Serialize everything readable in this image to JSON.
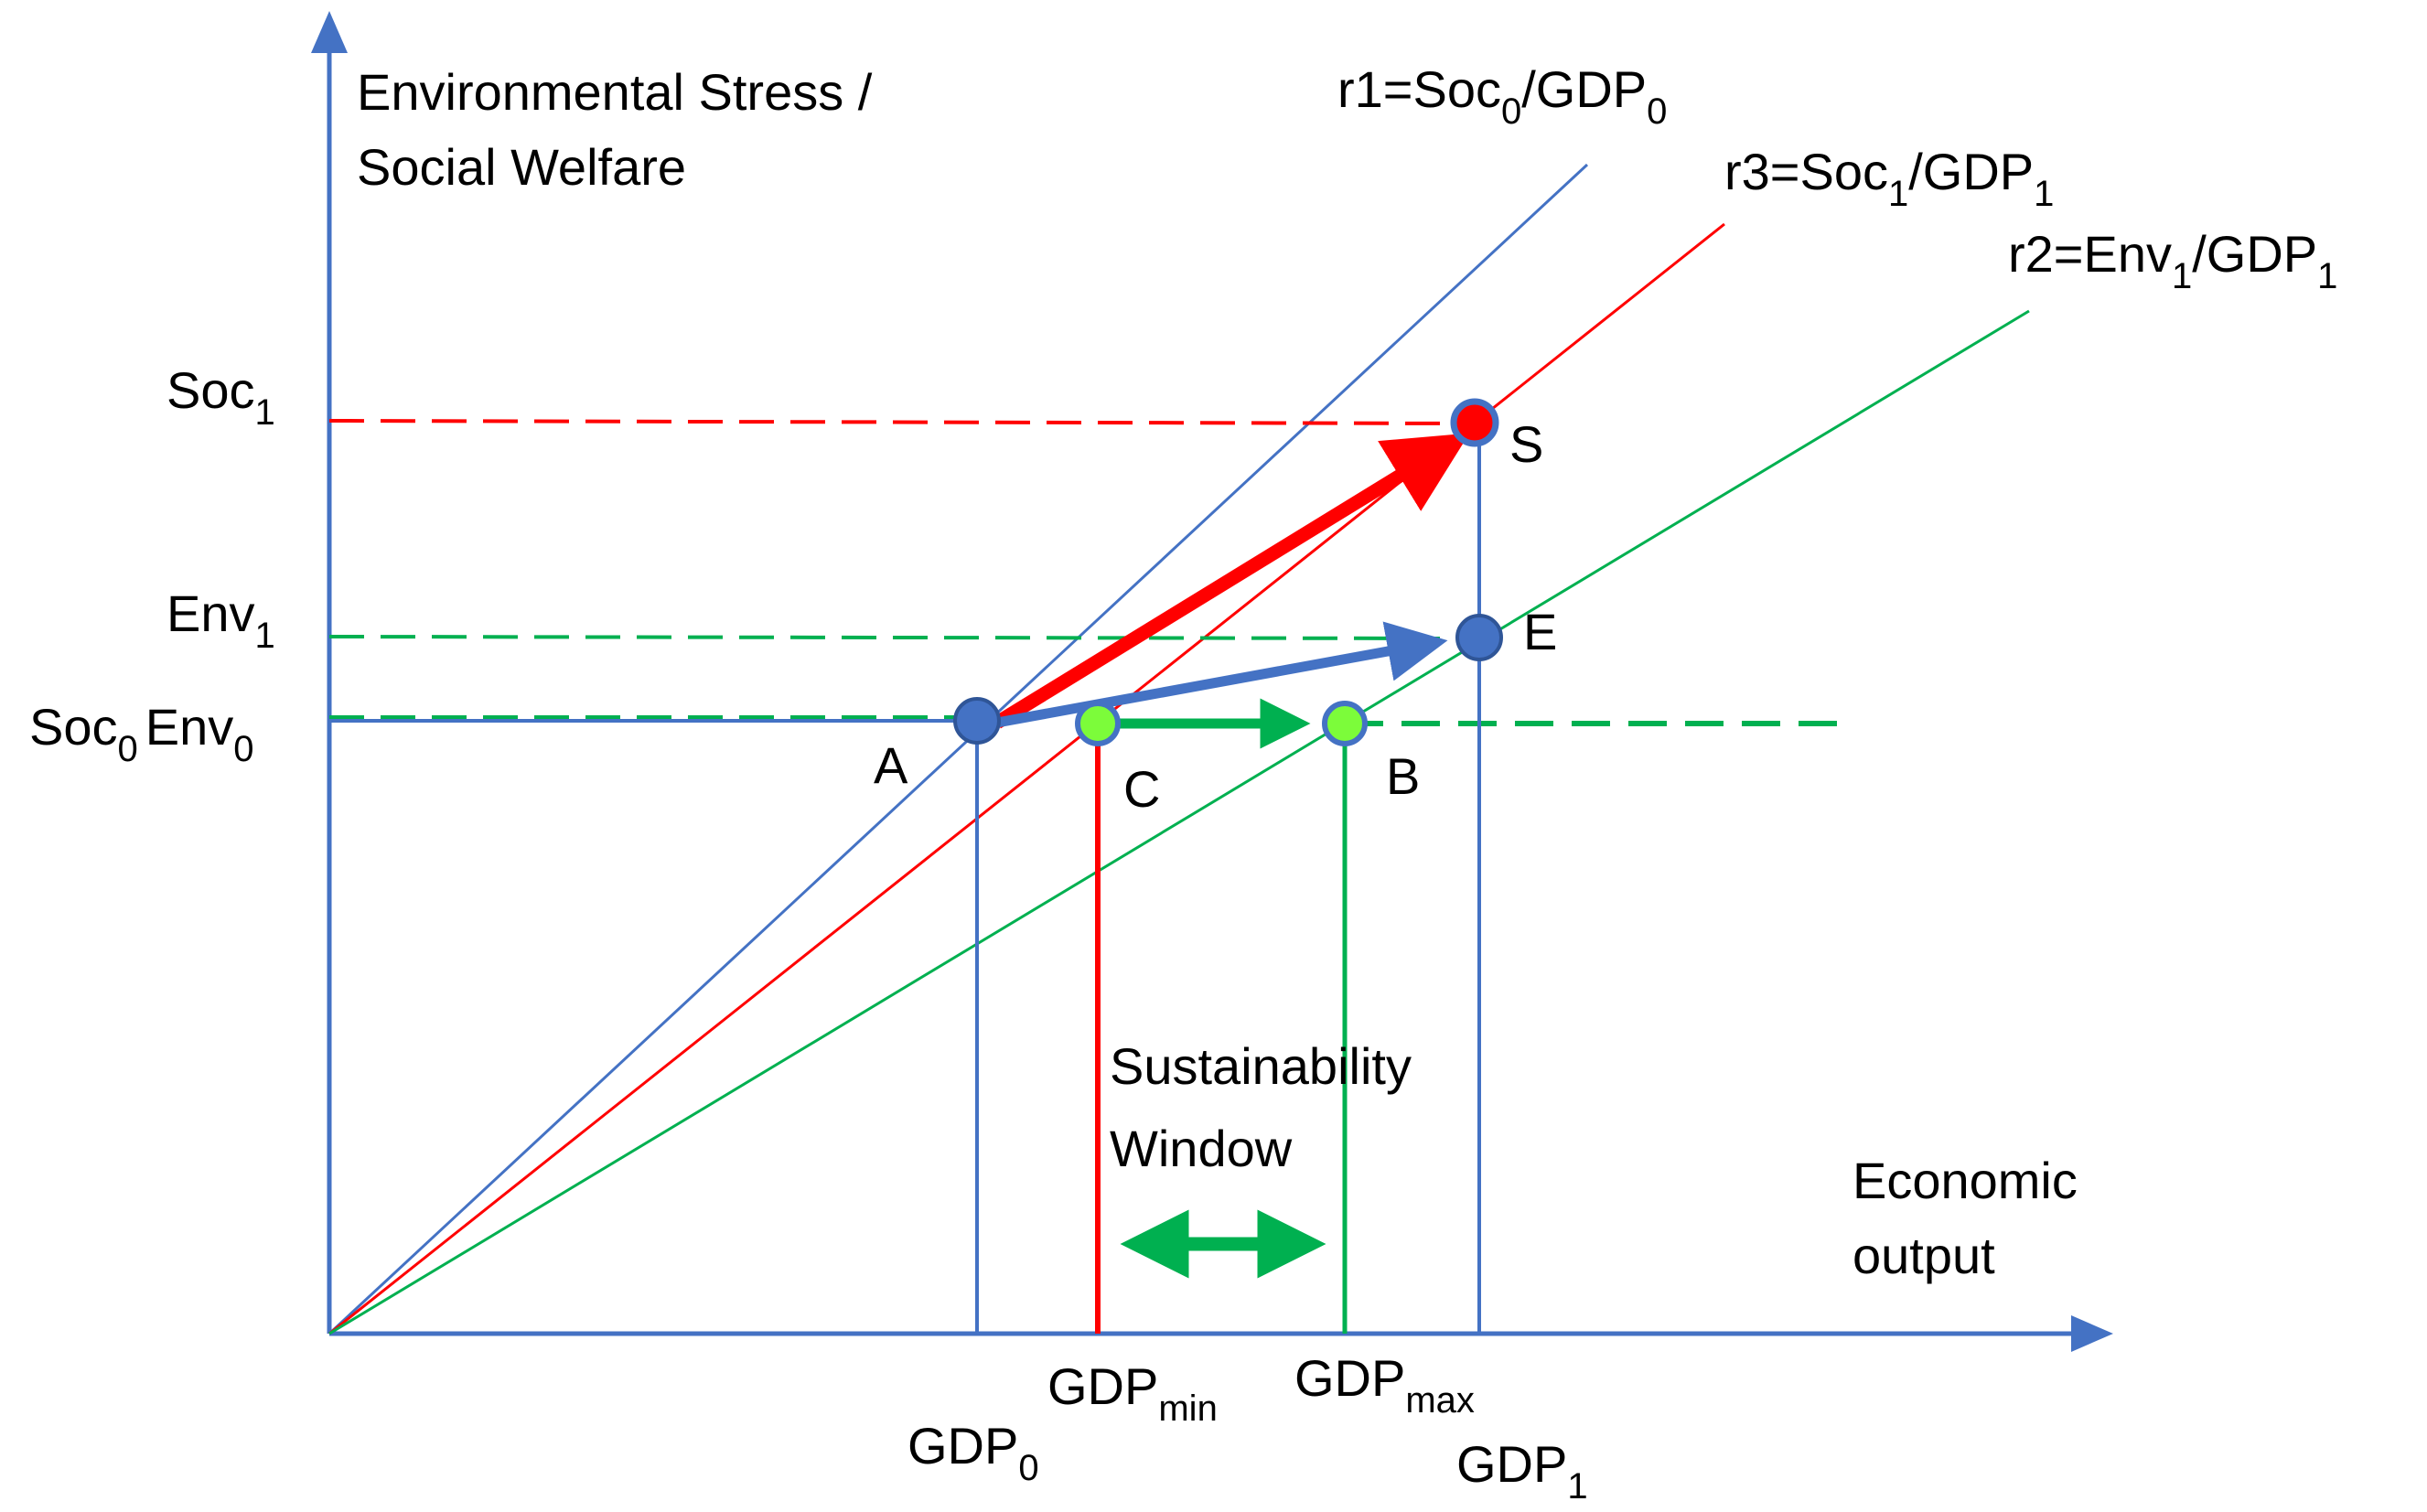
{
  "colors": {
    "axis": "#4472C4",
    "social": "#FF0000",
    "environment": "#00B050",
    "point_blue": "#4472C4",
    "point_green": "#7CFC3A",
    "point_red": "#FF0000"
  },
  "axes": {
    "y_title_line1": "Environmental Stress /",
    "y_title_line2": "Social Welfare",
    "x_title_line1": "Economic",
    "x_title_line2": "output"
  },
  "rays": {
    "r1": {
      "main": "r1=Soc",
      "sub": "0",
      "main2": "/GDP",
      "sub2": "0"
    },
    "r3": {
      "main": "r3=Soc",
      "sub": "1",
      "main2": "/GDP",
      "sub2": "1"
    },
    "r2": {
      "main": "r2=Env",
      "sub": "1",
      "main2": "/GDP",
      "sub2": "1"
    }
  },
  "y_ticks": {
    "soc1": {
      "main": "Soc",
      "sub": "1"
    },
    "env1": {
      "main": "Env",
      "sub": "1"
    },
    "soc0": {
      "main": "Soc",
      "sub": "0"
    },
    "env0": {
      "main": "Env",
      "sub": "0"
    }
  },
  "x_ticks": {
    "gdp0": {
      "main": "GDP",
      "sub": "0"
    },
    "gdpmin": {
      "main": "GDP",
      "sub": "min"
    },
    "gdpmax": {
      "main": "GDP",
      "sub": "max"
    },
    "gdp1": {
      "main": "GDP",
      "sub": "1"
    }
  },
  "points": {
    "A": "A",
    "B": "B",
    "C": "C",
    "E": "E",
    "S": "S"
  },
  "window": {
    "line1": "Sustainability",
    "line2": "Window"
  }
}
